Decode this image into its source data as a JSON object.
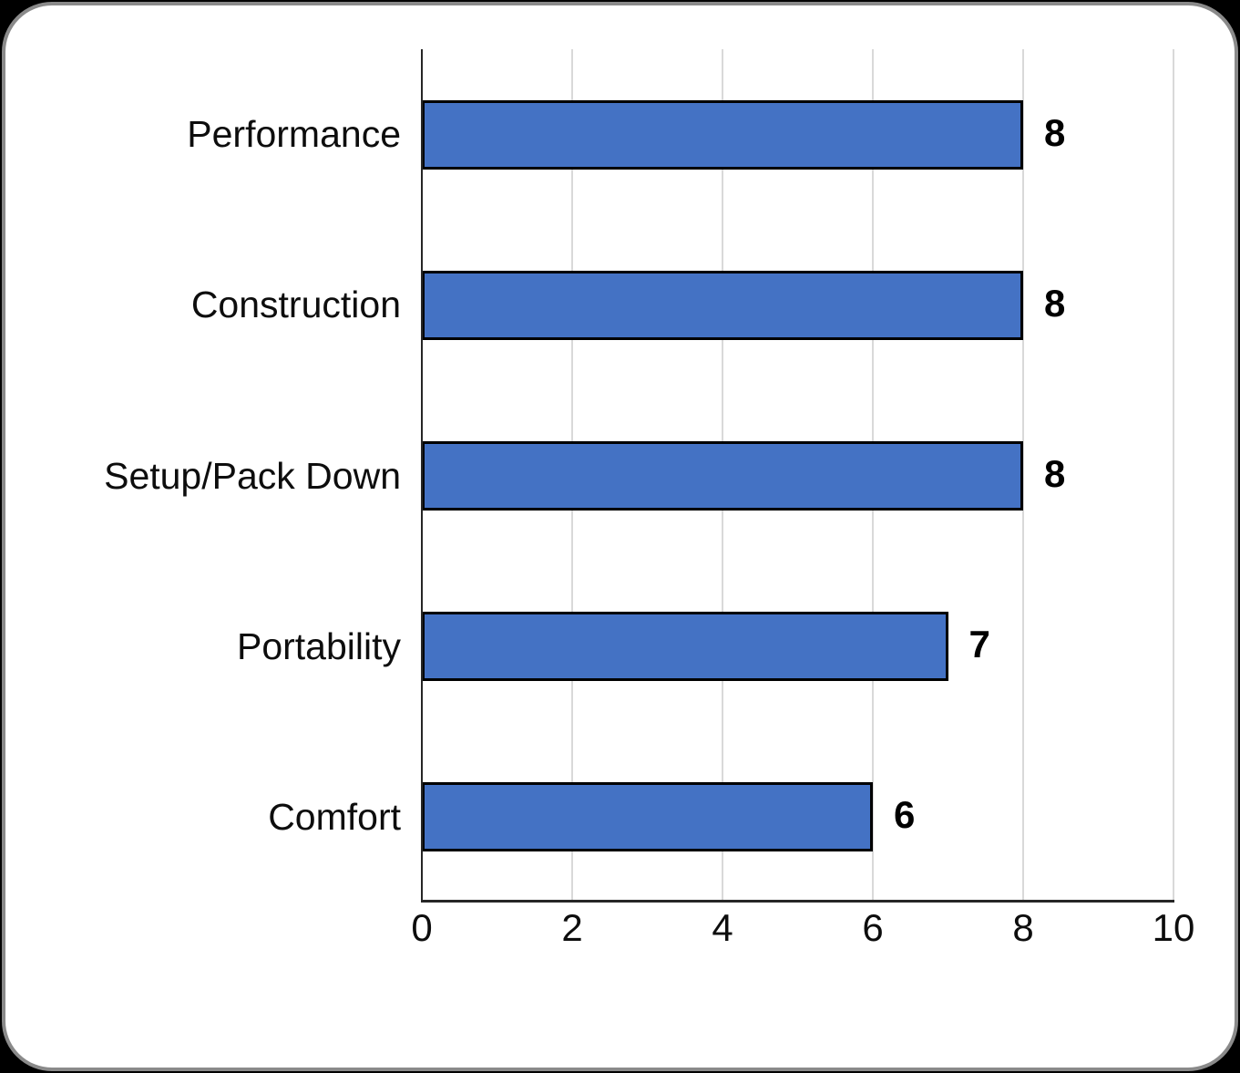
{
  "chart_data": {
    "type": "bar",
    "orientation": "horizontal",
    "title": "",
    "xlabel": "",
    "ylabel": "",
    "categories": [
      "Performance",
      "Construction",
      "Setup/Pack Down",
      "Portability",
      "Comfort"
    ],
    "values": [
      8,
      8,
      8,
      7,
      6
    ],
    "data_labels": [
      "8",
      "8",
      "8",
      "7",
      "6"
    ],
    "x_ticks": [
      "0",
      "2",
      "4",
      "6",
      "8",
      "10"
    ],
    "xlim": [
      0,
      10
    ],
    "grid": "vertical gridlines every 2 units, no horizontal gridlines",
    "legend": "none",
    "colors": {
      "bar_fill": "#4472C4",
      "bar_border": "#000000",
      "gridline": "#D9D9D9",
      "axis_line": "#262626",
      "text": "#000000",
      "plot_background": "#FFFFFF",
      "card_border": "#8A8A8A",
      "outer_background": "#000000"
    }
  }
}
